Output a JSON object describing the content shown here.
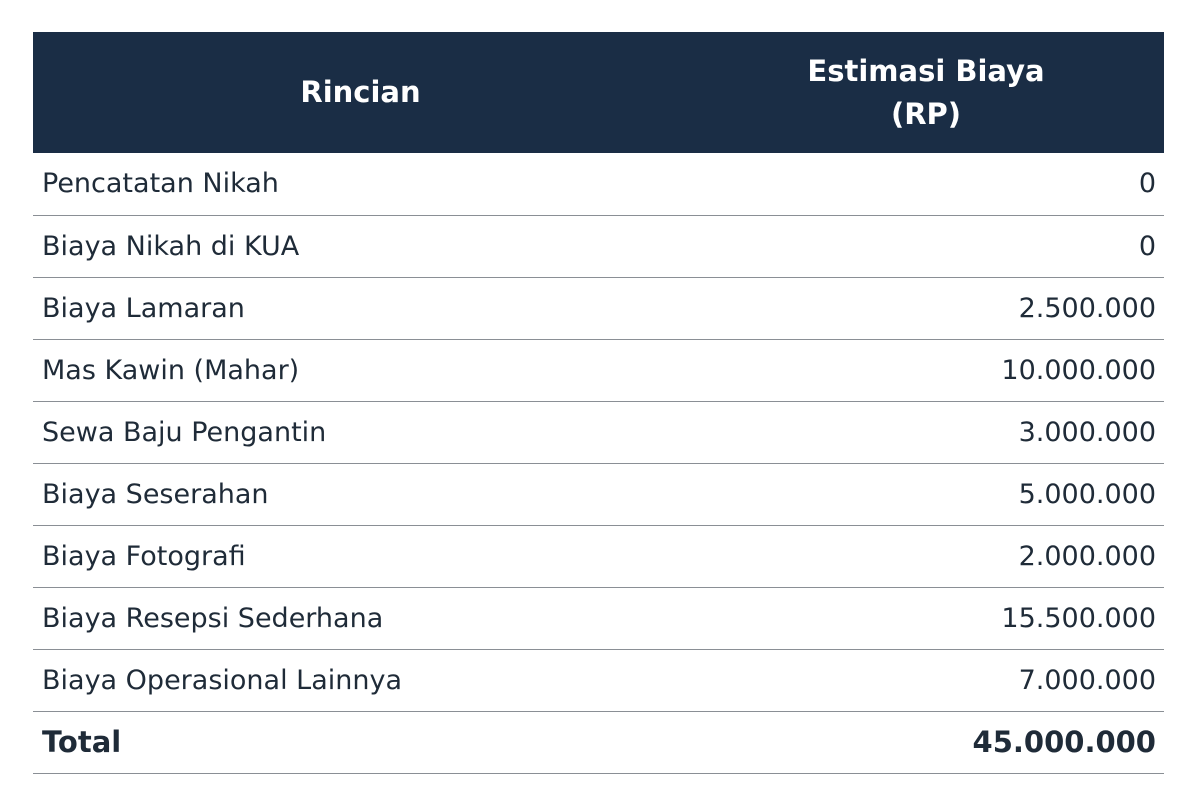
{
  "table": {
    "headers": {
      "rincian": "Rincian",
      "estimasi": "Estimasi Biaya (RP)"
    },
    "rows": [
      {
        "item": "Pencatatan Nikah",
        "value": "0"
      },
      {
        "item": "Biaya Nikah di KUA",
        "value": "0"
      },
      {
        "item": "Biaya Lamaran",
        "value": "2.500.000"
      },
      {
        "item": "Mas Kawin (Mahar)",
        "value": "10.000.000"
      },
      {
        "item": "Sewa Baju Pengantin",
        "value": "3.000.000"
      },
      {
        "item": "Biaya Seserahan",
        "value": "5.000.000"
      },
      {
        "item": "Biaya Fotografi",
        "value": "2.000.000"
      },
      {
        "item": "Biaya Resepsi Sederhana",
        "value": "15.500.000"
      },
      {
        "item": "Biaya Operasional Lainnya",
        "value": "7.000.000"
      }
    ],
    "total": {
      "item": "Total",
      "value": "45.000.000"
    }
  },
  "colors": {
    "header_bg": "#1a2d45",
    "header_text": "#ffffff",
    "body_text": "#1f2b38",
    "row_divider": "#8a8f95"
  }
}
